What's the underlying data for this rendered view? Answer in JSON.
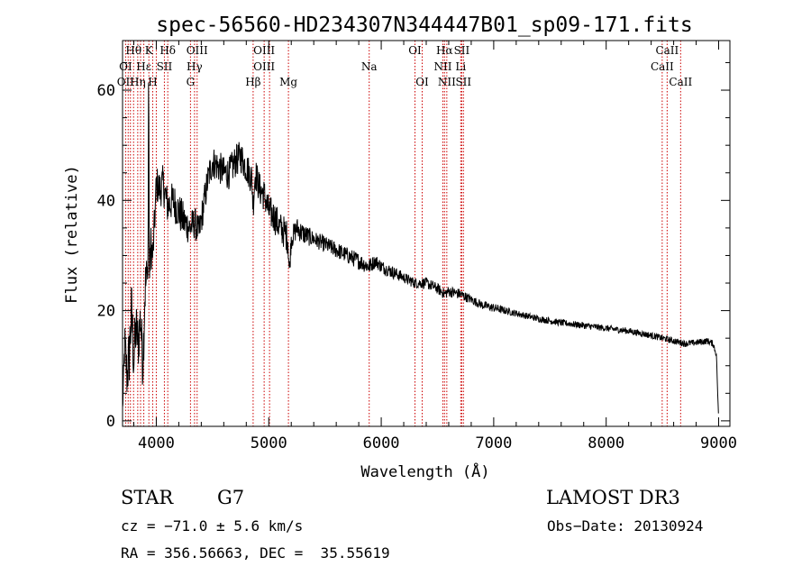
{
  "chart_data": {
    "type": "line",
    "title": "spec-56560-HD234307N344447B01_sp09-171.fits",
    "xlabel": "Wavelength (Å)",
    "ylabel": "Flux (relative)",
    "xlim": [
      3700,
      9100
    ],
    "ylim": [
      -1,
      69
    ],
    "x_ticks": [
      4000,
      5000,
      6000,
      7000,
      8000,
      9000
    ],
    "y_ticks": [
      0,
      20,
      40,
      60
    ],
    "x_tick_labels": [
      "4000",
      "5000",
      "6000",
      "7000",
      "8000",
      "9000"
    ],
    "y_tick_labels": [
      "0",
      "20",
      "40",
      "60"
    ],
    "spectrum_anchors": {
      "x": [
        3700,
        3720,
        3740,
        3760,
        3780,
        3800,
        3820,
        3840,
        3860,
        3880,
        3900,
        3920,
        3935,
        3950,
        3970,
        3990,
        4000,
        4030,
        4060,
        4100,
        4150,
        4200,
        4250,
        4300,
        4340,
        4380,
        4420,
        4460,
        4500,
        4560,
        4600,
        4650,
        4700,
        4750,
        4800,
        4850,
        4860,
        4880,
        4920,
        4960,
        5000,
        5050,
        5100,
        5150,
        5170,
        5183,
        5200,
        5250,
        5300,
        5400,
        5500,
        5600,
        5700,
        5800,
        5890,
        5950,
        6000,
        6100,
        6200,
        6300,
        6400,
        6500,
        6563,
        6600,
        6700,
        6800,
        6900,
        7000,
        7200,
        7400,
        7600,
        7800,
        8000,
        8200,
        8400,
        8500,
        8542,
        8600,
        8662,
        8700,
        8800,
        8900,
        8950,
        8980,
        9000
      ],
      "y": [
        2,
        14,
        8,
        12,
        20,
        11,
        17,
        14,
        19,
        10,
        24,
        26,
        23,
        32,
        30,
        38,
        43,
        42,
        43,
        39,
        40,
        38,
        36,
        35,
        36,
        34,
        39,
        44,
        47,
        46,
        45,
        45,
        47,
        48,
        46,
        44,
        39,
        45,
        42,
        41,
        38,
        37,
        35,
        34,
        33,
        27,
        33,
        35,
        34,
        33,
        32,
        31,
        30,
        29,
        28,
        29,
        28,
        27,
        26,
        25,
        25,
        24,
        23,
        23.5,
        23,
        22,
        21,
        20.5,
        19.5,
        18.5,
        17.8,
        17.3,
        16.8,
        16.3,
        15.5,
        15,
        14.8,
        14.5,
        14.2,
        14,
        14.2,
        14.5,
        14,
        12,
        0
      ],
      "noise_amplitude": [
        1.5,
        4,
        5,
        6,
        6,
        6,
        5,
        5,
        5,
        5,
        6,
        5,
        4,
        4,
        3.5,
        3.5,
        3.5,
        3.5,
        3.5,
        3.5,
        3.5,
        3.5,
        3.5,
        3,
        3,
        3,
        3,
        3,
        3,
        3,
        3,
        3,
        3,
        3,
        3,
        3,
        3,
        3,
        3,
        3,
        3,
        3,
        3,
        3,
        3,
        2,
        2,
        2,
        2,
        1.5,
        1.5,
        1.5,
        1.5,
        1.5,
        1.5,
        1.2,
        1.2,
        1.2,
        1,
        1,
        1,
        1,
        1,
        1,
        1,
        0.8,
        0.8,
        0.8,
        0.6,
        0.6,
        0.6,
        0.6,
        0.6,
        0.6,
        0.6,
        0.6,
        0.6,
        0.6,
        0.6,
        0.6,
        0.6,
        0.6,
        0.6,
        0.5,
        0.2
      ]
    },
    "lines": [
      {
        "label": "Hθ",
        "wave": 3798,
        "row": 0
      },
      {
        "label": "K",
        "wave": 3934,
        "row": 0
      },
      {
        "label": "Hδ",
        "wave": 4102,
        "row": 0
      },
      {
        "label": "OIII",
        "wave": 4363,
        "row": 0
      },
      {
        "label": "OIII",
        "wave": 4959,
        "row": 0
      },
      {
        "label": "OI",
        "wave": 6300,
        "row": 0
      },
      {
        "label": "Hα",
        "wave": 6563,
        "row": 0
      },
      {
        "label": "SII",
        "wave": 6716,
        "row": 0
      },
      {
        "label": "CaII",
        "wave": 8542,
        "row": 0
      },
      {
        "label": "OI",
        "wave": 3727,
        "row": 1
      },
      {
        "label": "Hε",
        "wave": 3889,
        "row": 1
      },
      {
        "label": "SII",
        "wave": 4072,
        "row": 1
      },
      {
        "label": "Hγ",
        "wave": 4340,
        "row": 1
      },
      {
        "label": "OIII",
        "wave": 4959,
        "row": 1
      },
      {
        "label": "Na",
        "wave": 5893,
        "row": 1
      },
      {
        "label": "NII",
        "wave": 6548,
        "row": 1
      },
      {
        "label": "Li",
        "wave": 6707,
        "row": 1
      },
      {
        "label": "CaII",
        "wave": 8498,
        "row": 1
      },
      {
        "label": "OII",
        "wave": 3727,
        "row": 2
      },
      {
        "label": "Hη",
        "wave": 3835,
        "row": 2
      },
      {
        "label": "H",
        "wave": 3968,
        "row": 2
      },
      {
        "label": "G",
        "wave": 4304,
        "row": 2
      },
      {
        "label": "Hβ",
        "wave": 4861,
        "row": 2
      },
      {
        "label": "Mg",
        "wave": 5175,
        "row": 2
      },
      {
        "label": "OI",
        "wave": 6364,
        "row": 2
      },
      {
        "label": "NII",
        "wave": 6583,
        "row": 2
      },
      {
        "label": "SII",
        "wave": 6731,
        "row": 2
      },
      {
        "label": "CaII",
        "wave": 8662,
        "row": 2
      }
    ],
    "extra_marker_waves": [
      3750,
      3770,
      3860,
      4000,
      5007
    ]
  },
  "info": {
    "object_class": "STAR",
    "subclass": "G7",
    "survey": "LAMOST DR3",
    "redshift_text": "cz = −71.0 ± 5.6 km/s",
    "obs_date": "Obs−Date: 20130924",
    "coords": "RA = 356.56663, DEC =  35.55619"
  },
  "colors": {
    "axis": "#000000",
    "spectrum": "#000000",
    "line_marker": "#cc0000"
  }
}
